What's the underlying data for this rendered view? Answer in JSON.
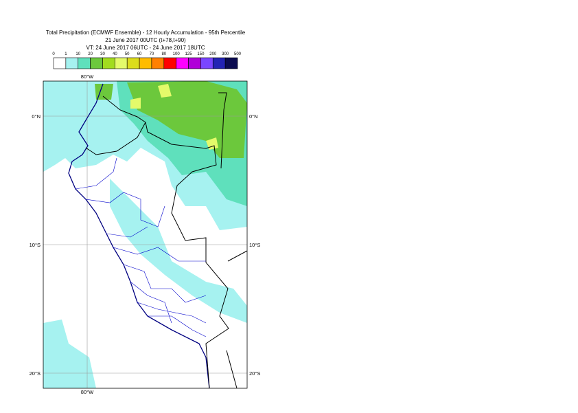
{
  "title": [
    "Total Precipitation (ECMWF Ensemble) - 12 Hourly Accumulation - 95th Percentile",
    "21 June 2017 00UTC (t+78,t+90)",
    "VT: 24 June 2017 06UTC - 24 June 2017 18UTC"
  ],
  "colorbar": {
    "labels": [
      0,
      1,
      10,
      20,
      30,
      40,
      50,
      60,
      70,
      80,
      100,
      125,
      150,
      200,
      300,
      500
    ],
    "colors": [
      "#ffffff",
      "#a6f2f0",
      "#5fe0bc",
      "#6cc83c",
      "#a2dc1e",
      "#e4fa6a",
      "#dcdc1c",
      "#ffbc00",
      "#ff8000",
      "#ff0000",
      "#ff00ff",
      "#b000d8",
      "#7a46ff",
      "#2424b4",
      "#0c0c50"
    ]
  },
  "map": {
    "lon_label": "80°W",
    "lat_labels": [
      "0°N",
      "10°S",
      "20°S"
    ]
  }
}
